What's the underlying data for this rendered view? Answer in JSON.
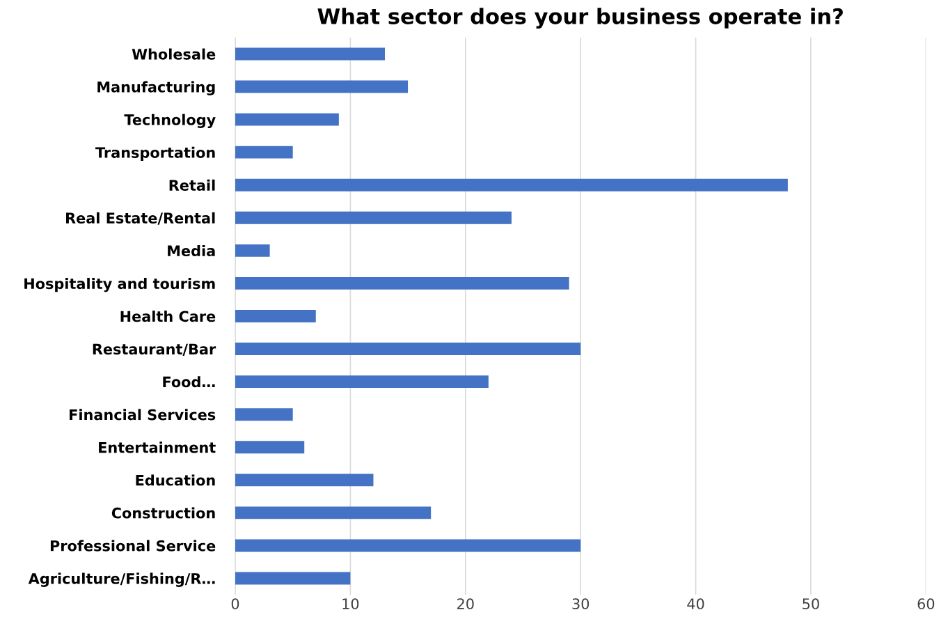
{
  "chart_data": {
    "type": "bar",
    "orientation": "horizontal",
    "title": "What sector does your business operate in?",
    "categories": [
      "Wholesale",
      "Manufacturing",
      "Technology",
      "Transportation",
      "Retail",
      "Real Estate/Rental",
      "Media",
      "Hospitality and tourism",
      "Health Care",
      "Restaurant/Bar",
      "Food…",
      "Financial Services",
      "Entertainment",
      "Education",
      "Construction",
      "Professional Service",
      "Agriculture/Fishing/R…"
    ],
    "values": [
      13,
      15,
      9,
      5,
      48,
      24,
      3,
      29,
      7,
      30,
      22,
      5,
      6,
      12,
      17,
      30,
      10
    ],
    "color": "#4472c4",
    "xlim": [
      0,
      60
    ],
    "xticks": [
      0,
      10,
      20,
      30,
      40,
      50,
      60
    ],
    "grid": "x"
  }
}
